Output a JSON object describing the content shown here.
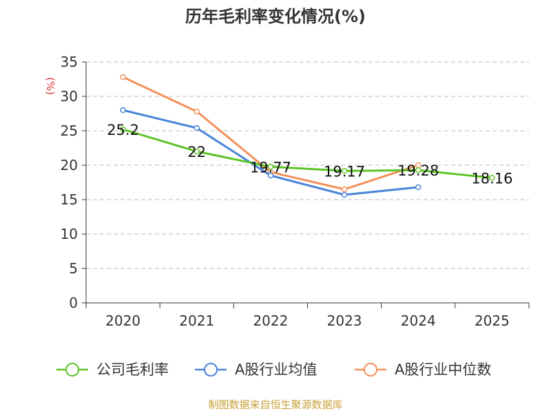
{
  "colors": {
    "company": "#5cc425",
    "industry_avg": "#4a84d8",
    "industry_median": "#f4905a",
    "grid": "#bbbbbb",
    "axis": "#333333",
    "unit": "#e03030",
    "source": "#c9a23a"
  },
  "source_text": "制图数据来自恒生聚源数据库",
  "chart_data": {
    "type": "line",
    "title": "历年毛利率变化情况(%)",
    "ylabel": "(%)",
    "xlabel": "",
    "categories": [
      "2020",
      "2021",
      "2022",
      "2023",
      "2024",
      "2025"
    ],
    "ylim": [
      0,
      35
    ],
    "yticks": [
      0,
      5,
      10,
      15,
      20,
      25,
      30,
      35
    ],
    "grid": true,
    "legend_position": "bottom",
    "series": [
      {
        "name": "公司毛利率",
        "color_key": "company",
        "values": [
          25.2,
          22,
          19.77,
          19.17,
          19.28,
          18.16
        ],
        "labels": [
          "25.2",
          "22",
          "19.77",
          "19.17",
          "19.28",
          "18.16"
        ]
      },
      {
        "name": "A股行业均值",
        "color_key": "industry_avg",
        "values": [
          28,
          25.4,
          18.5,
          15.7,
          16.8,
          null
        ]
      },
      {
        "name": "A股行业中位数",
        "color_key": "industry_median",
        "values": [
          32.8,
          27.8,
          19.0,
          16.5,
          20.0,
          null
        ]
      }
    ]
  }
}
